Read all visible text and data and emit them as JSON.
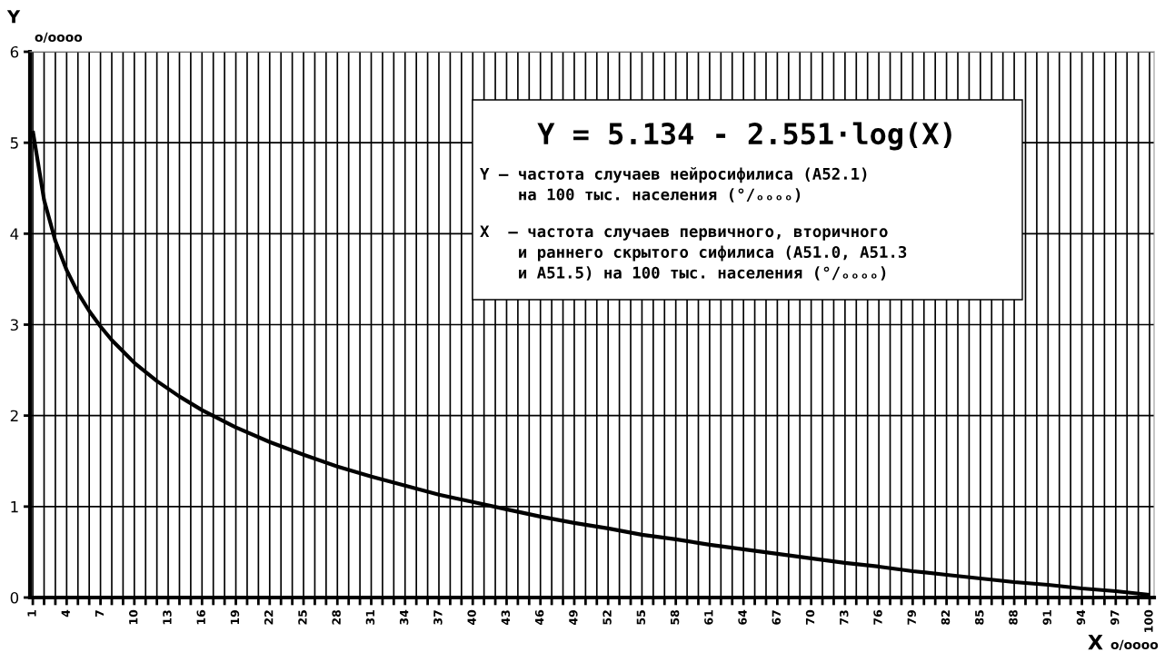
{
  "chart_data": {
    "type": "line",
    "ylabel": "Y",
    "xlabel": "X",
    "annotations": [
      "o/oooo",
      "o/oooo",
      "Y = 5.134 - 2.551·log(X)",
      "Y – частота случаев нейросифилиса (А52.1)\n    на 100 тыс. населения (°/ₒₒₒₒ)",
      "X  – частота случаев первичного, вторичного\n    и раннего скрытого сифилиса (А51.0, А51.3\n    и А51.5) на 100 тыс. населения (°/ₒₒₒₒ)"
    ],
    "series": [
      {
        "color": "#000000",
        "x": [
          1,
          2,
          3,
          4,
          5,
          6,
          7,
          8,
          10,
          12,
          14,
          16,
          19,
          22,
          25,
          28,
          31,
          34,
          37,
          40,
          43,
          46,
          49,
          52,
          55,
          58,
          61,
          64,
          67,
          70,
          73,
          76,
          79,
          82,
          85,
          88,
          91,
          94,
          97,
          100
        ],
        "values": [
          5.13,
          4.37,
          3.92,
          3.6,
          3.35,
          3.15,
          2.98,
          2.83,
          2.58,
          2.38,
          2.21,
          2.06,
          1.87,
          1.71,
          1.57,
          1.44,
          1.33,
          1.23,
          1.13,
          1.05,
          0.97,
          0.89,
          0.82,
          0.76,
          0.69,
          0.64,
          0.58,
          0.53,
          0.48,
          0.43,
          0.38,
          0.34,
          0.29,
          0.25,
          0.21,
          0.17,
          0.14,
          0.1,
          0.07,
          0.03
        ]
      }
    ],
    "xlim": [
      0.75,
      100.4
    ],
    "ylim": [
      0,
      6
    ],
    "yticks": [
      0,
      1,
      2,
      3,
      4,
      5,
      6
    ],
    "xticks": [
      1,
      {
        "value": 2,
        "label": null
      },
      {
        "value": 3,
        "label": null
      },
      4,
      {
        "value": 5,
        "label": null
      },
      {
        "value": 6,
        "label": null
      },
      7,
      {
        "value": 8,
        "label": null
      },
      {
        "value": 9,
        "label": null
      },
      10,
      {
        "value": 11,
        "label": null
      },
      {
        "value": 12,
        "label": null
      },
      13,
      {
        "value": 14,
        "label": null
      },
      {
        "value": 15,
        "label": null
      },
      16,
      {
        "value": 17,
        "label": null
      },
      {
        "value": 18,
        "label": null
      },
      19,
      {
        "value": 20,
        "label": null
      },
      {
        "value": 21,
        "label": null
      },
      22,
      {
        "value": 23,
        "label": null
      },
      {
        "value": 24,
        "label": null
      },
      25,
      {
        "value": 26,
        "label": null
      },
      {
        "value": 27,
        "label": null
      },
      28,
      {
        "value": 29,
        "label": null
      },
      {
        "value": 30,
        "label": null
      },
      31,
      {
        "value": 32,
        "label": null
      },
      {
        "value": 33,
        "label": null
      },
      34,
      {
        "value": 35,
        "label": null
      },
      {
        "value": 36,
        "label": null
      },
      37,
      {
        "value": 38,
        "label": null
      },
      {
        "value": 39,
        "label": null
      },
      40,
      {
        "value": 41,
        "label": null
      },
      {
        "value": 42,
        "label": null
      },
      43,
      {
        "value": 44,
        "label": null
      },
      {
        "value": 45,
        "label": null
      },
      46,
      {
        "value": 47,
        "label": null
      },
      {
        "value": 48,
        "label": null
      },
      49,
      {
        "value": 50,
        "label": null
      },
      {
        "value": 51,
        "label": null
      },
      52,
      {
        "value": 53,
        "label": null
      },
      {
        "value": 54,
        "label": null
      },
      55,
      {
        "value": 56,
        "label": null
      },
      {
        "value": 57,
        "label": null
      },
      58,
      {
        "value": 59,
        "label": null
      },
      {
        "value": 60,
        "label": null
      },
      61,
      {
        "value": 62,
        "label": null
      },
      {
        "value": 63,
        "label": null
      },
      64,
      {
        "value": 65,
        "label": null
      },
      {
        "value": 66,
        "label": null
      },
      67,
      {
        "value": 68,
        "label": null
      },
      {
        "value": 69,
        "label": null
      },
      70,
      {
        "value": 71,
        "label": null
      },
      {
        "value": 72,
        "label": null
      },
      73,
      {
        "value": 74,
        "label": null
      },
      {
        "value": 75,
        "label": null
      },
      76,
      {
        "value": 77,
        "label": null
      },
      {
        "value": 78,
        "label": null
      },
      79,
      {
        "value": 80,
        "label": null
      },
      {
        "value": 81,
        "label": null
      },
      82,
      {
        "value": 83,
        "label": null
      },
      {
        "value": 84,
        "label": null
      },
      85,
      {
        "value": 86,
        "label": null
      },
      {
        "value": 87,
        "label": null
      },
      88,
      {
        "value": 89,
        "label": null
      },
      {
        "value": 90,
        "label": null
      },
      91,
      {
        "value": 92,
        "label": null
      },
      {
        "value": 93,
        "label": null
      },
      94,
      {
        "value": 95,
        "label": null
      },
      {
        "value": 96,
        "label": null
      },
      97,
      {
        "value": 98,
        "label": null
      },
      {
        "value": 99,
        "label": null
      },
      100
    ],
    "grid": true,
    "legend": false,
    "marker": "none",
    "line_style": "solid"
  }
}
